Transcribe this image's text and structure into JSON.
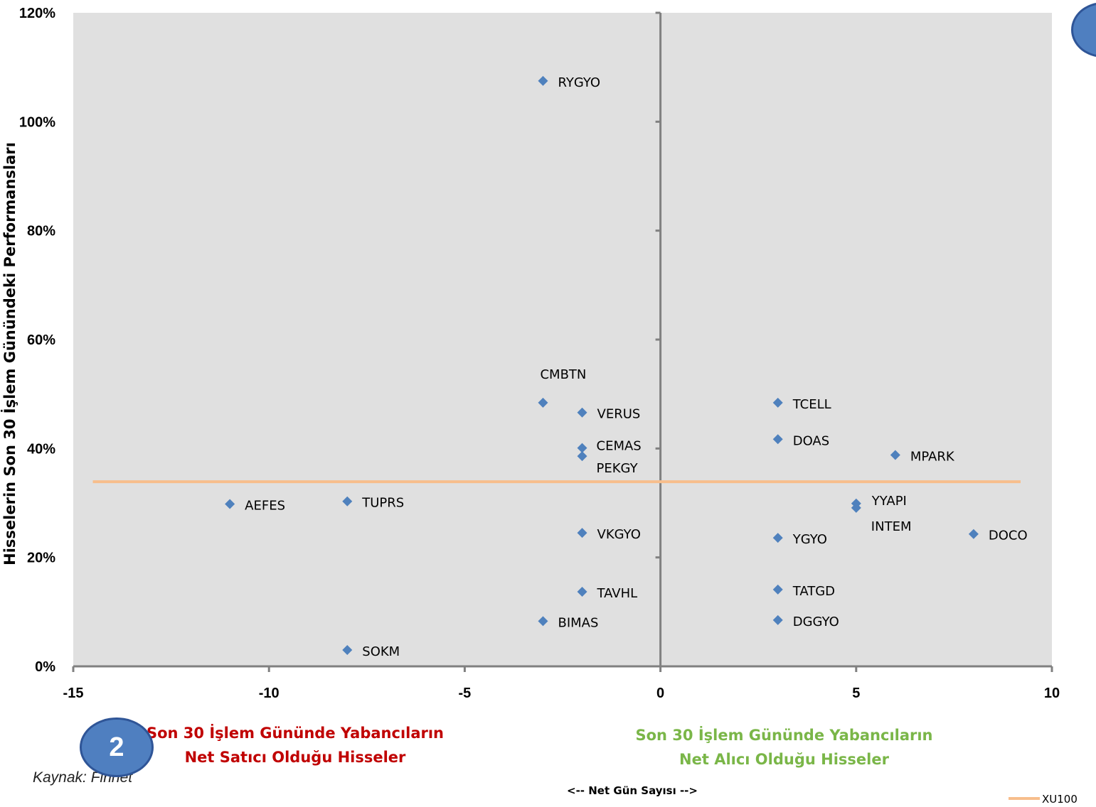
{
  "chart_data": {
    "type": "scatter",
    "ylabel": "Hisselerin Son  30 İşlem Günündeki  Performansları",
    "xlabel": "<-- Net Gün Sayısı -->",
    "xlim": [
      -15,
      10
    ],
    "ylim": [
      0,
      1.2
    ],
    "x_ticks": [
      -15,
      -10,
      -5,
      0,
      5,
      10
    ],
    "x_tick_labels": [
      "-15",
      "-10",
      "-5",
      "0",
      "5",
      "10"
    ],
    "y_ticks": [
      0,
      0.2,
      0.4,
      0.6,
      0.8,
      1.0,
      1.2
    ],
    "y_tick_labels": [
      "0%",
      "20%",
      "40%",
      "60%",
      "80%",
      "100%",
      "120%"
    ],
    "grid": false,
    "points": [
      {
        "label": "RYGYO",
        "x": -3,
        "y": 1.075
      },
      {
        "label": "CMBTN",
        "x": -3,
        "y": 0.484
      },
      {
        "label": "VERUS",
        "x": -2,
        "y": 0.466
      },
      {
        "label": "CEMAS",
        "x": -2,
        "y": 0.401
      },
      {
        "label": "PEKGY",
        "x": -2,
        "y": 0.386
      },
      {
        "label": "AEFES",
        "x": -11,
        "y": 0.298
      },
      {
        "label": "TUPRS",
        "x": -8,
        "y": 0.303
      },
      {
        "label": "VKGYO",
        "x": -2,
        "y": 0.245
      },
      {
        "label": "TAVHL",
        "x": -2,
        "y": 0.137
      },
      {
        "label": "BIMAS",
        "x": -3,
        "y": 0.083
      },
      {
        "label": "SOKM",
        "x": -8,
        "y": 0.03
      },
      {
        "label": "TCELL",
        "x": 3,
        "y": 0.484
      },
      {
        "label": "DOAS",
        "x": 3,
        "y": 0.417
      },
      {
        "label": "MPARK",
        "x": 6,
        "y": 0.388
      },
      {
        "label": "YYAPI",
        "x": 5,
        "y": 0.299
      },
      {
        "label": "INTEM",
        "x": 5,
        "y": 0.291
      },
      {
        "label": "DOCO",
        "x": 8,
        "y": 0.243
      },
      {
        "label": "YGYO",
        "x": 3,
        "y": 0.236
      },
      {
        "label": "TATGD",
        "x": 3,
        "y": 0.141
      },
      {
        "label": "DGGYO",
        "x": 3,
        "y": 0.085
      }
    ],
    "reference_line": {
      "name": "XU100",
      "y": 0.339,
      "x_range": [
        -14.5,
        9.2
      ],
      "color": "#f7be8c"
    },
    "marker_color": "#4f81bd",
    "plot_background": "#e0e0e0",
    "legend_position": "bottom-right"
  },
  "captions": {
    "left_line1": "Son 30 İşlem Gününde Yabancıların",
    "left_line2": "Net Satıcı  Olduğu Hisseler",
    "left_color": "#c00000",
    "right_line1": "Son 30 İşlem Gününde Yabancıların",
    "right_line2": "Net Alıcı Olduğu Hisseler",
    "right_color": "#7ab648"
  },
  "source": "Kaynak: Finnet",
  "badge_number": "2",
  "badge_color": "#4f7fc0"
}
